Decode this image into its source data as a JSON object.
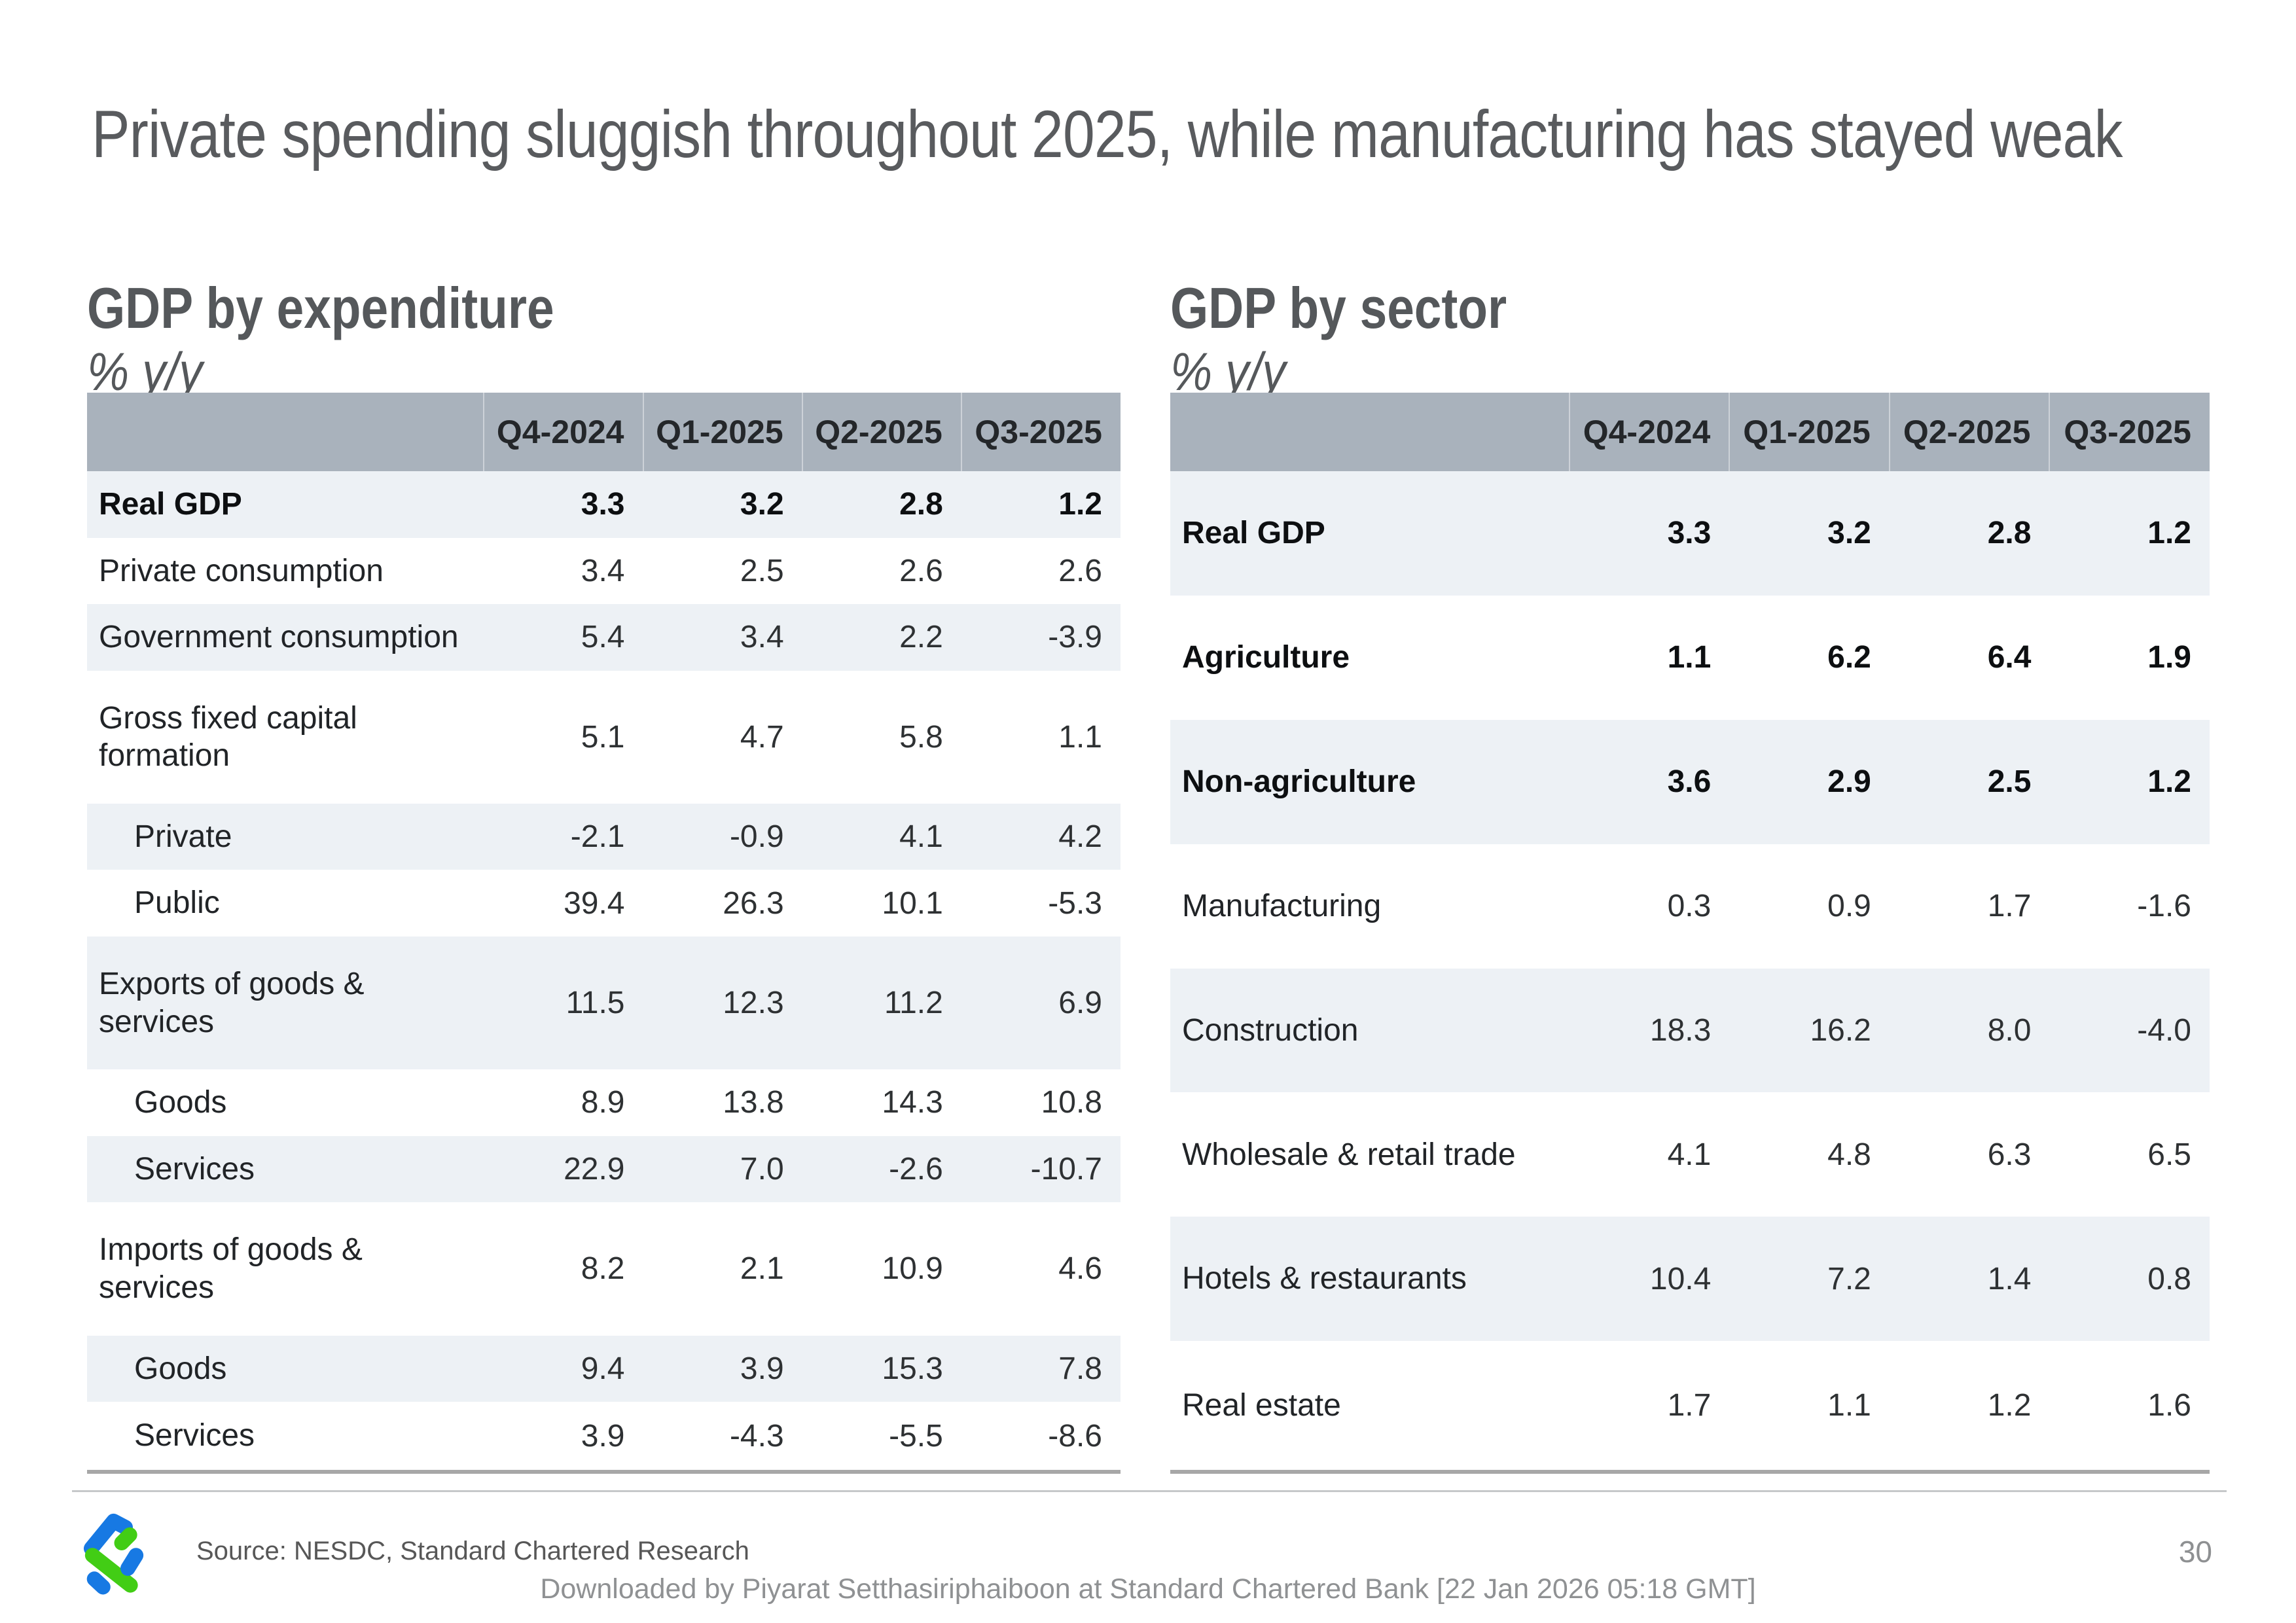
{
  "slide": {
    "title": "Private spending sluggish throughout 2025, while manufacturing has stayed weak",
    "page_number": "30",
    "footer": {
      "source": "Source: NESDC, Standard Chartered Research",
      "download_notice": "Downloaded by Piyarat Setthasiriphaiboon at Standard Chartered Bank [22 Jan 2026 05:18 GMT]",
      "logo": "standard-chartered-trustmark"
    },
    "colors": {
      "sc_blue": "#1779e3",
      "sc_green": "#42cd15",
      "table_header_bg": "#a9b2bc",
      "row_stripe_bg": "#edf1f5",
      "table_border": "#a7a7a7",
      "heading_text": "#55585b"
    }
  },
  "tables": [
    {
      "id": "expenditure",
      "title": "GDP by expenditure",
      "subtitle": "% y/y",
      "columns": [
        "Q4-2024",
        "Q1-2025",
        "Q2-2025",
        "Q3-2025"
      ],
      "rows": [
        {
          "label": "Real GDP",
          "bold": true,
          "indent": false,
          "values": [
            "3.3",
            "3.2",
            "2.8",
            "1.2"
          ]
        },
        {
          "label": "Private consumption",
          "bold": false,
          "indent": false,
          "values": [
            "3.4",
            "2.5",
            "2.6",
            "2.6"
          ]
        },
        {
          "label": "Government consumption",
          "bold": false,
          "indent": false,
          "values": [
            "5.4",
            "3.4",
            "2.2",
            "-3.9"
          ]
        },
        {
          "label": "Gross fixed capital formation",
          "bold": false,
          "indent": false,
          "values": [
            "5.1",
            "4.7",
            "5.8",
            "1.1"
          ]
        },
        {
          "label": "Private",
          "bold": false,
          "indent": true,
          "values": [
            "-2.1",
            "-0.9",
            "4.1",
            "4.2"
          ]
        },
        {
          "label": "Public",
          "bold": false,
          "indent": true,
          "values": [
            "39.4",
            "26.3",
            "10.1",
            "-5.3"
          ]
        },
        {
          "label": "Exports of goods & services",
          "bold": false,
          "indent": false,
          "values": [
            "11.5",
            "12.3",
            "11.2",
            "6.9"
          ]
        },
        {
          "label": "Goods",
          "bold": false,
          "indent": true,
          "values": [
            "8.9",
            "13.8",
            "14.3",
            "10.8"
          ]
        },
        {
          "label": "Services",
          "bold": false,
          "indent": true,
          "values": [
            "22.9",
            "7.0",
            "-2.6",
            "-10.7"
          ]
        },
        {
          "label": "Imports of goods & services",
          "bold": false,
          "indent": false,
          "values": [
            "8.2",
            "2.1",
            "10.9",
            "4.6"
          ]
        },
        {
          "label": "Goods",
          "bold": false,
          "indent": true,
          "values": [
            "9.4",
            "3.9",
            "15.3",
            "7.8"
          ]
        },
        {
          "label": "Services",
          "bold": false,
          "indent": true,
          "values": [
            "3.9",
            "-4.3",
            "-5.5",
            "-8.6"
          ]
        }
      ]
    },
    {
      "id": "sector",
      "title": "GDP by sector",
      "subtitle": "% y/y",
      "columns": [
        "Q4-2024",
        "Q1-2025",
        "Q2-2025",
        "Q3-2025"
      ],
      "rows": [
        {
          "label": "Real GDP",
          "bold": true,
          "indent": false,
          "values": [
            "3.3",
            "3.2",
            "2.8",
            "1.2"
          ]
        },
        {
          "label": "Agriculture",
          "bold": true,
          "indent": false,
          "values": [
            "1.1",
            "6.2",
            "6.4",
            "1.9"
          ]
        },
        {
          "label": "Non-agriculture",
          "bold": true,
          "indent": false,
          "values": [
            "3.6",
            "2.9",
            "2.5",
            "1.2"
          ]
        },
        {
          "label": "Manufacturing",
          "bold": false,
          "indent": false,
          "values": [
            "0.3",
            "0.9",
            "1.7",
            "-1.6"
          ]
        },
        {
          "label": "Construction",
          "bold": false,
          "indent": false,
          "values": [
            "18.3",
            "16.2",
            "8.0",
            "-4.0"
          ]
        },
        {
          "label": "Wholesale & retail trade",
          "bold": false,
          "indent": false,
          "values": [
            "4.1",
            "4.8",
            "6.3",
            "6.5"
          ]
        },
        {
          "label": "Hotels & restaurants",
          "bold": false,
          "indent": false,
          "values": [
            "10.4",
            "7.2",
            "1.4",
            "0.8"
          ]
        },
        {
          "label": "Real estate",
          "bold": false,
          "indent": false,
          "values": [
            "1.7",
            "1.1",
            "1.2",
            "1.6"
          ]
        }
      ]
    }
  ]
}
